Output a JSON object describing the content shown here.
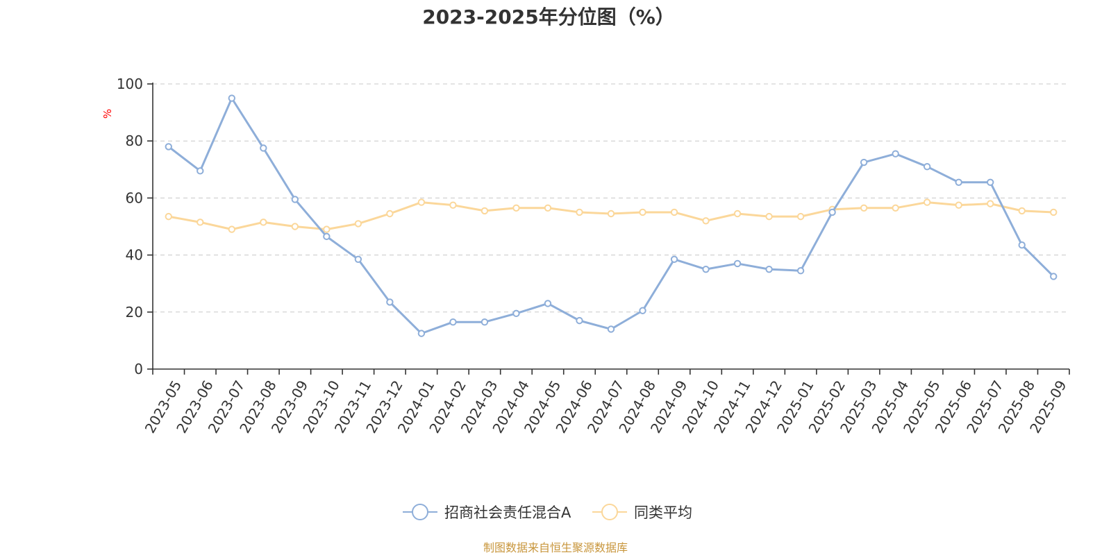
{
  "chart_data": {
    "type": "line",
    "title": "2023-2025年分位图（%）",
    "ylabel": "%",
    "xlabel": "",
    "ylim": [
      0,
      100
    ],
    "yticks": [
      0,
      20,
      40,
      60,
      80,
      100
    ],
    "grid": true,
    "legend_position": "bottom",
    "categories": [
      "2023-05",
      "2023-06",
      "2023-07",
      "2023-08",
      "2023-09",
      "2023-10",
      "2023-11",
      "2023-12",
      "2024-01",
      "2024-02",
      "2024-03",
      "2024-04",
      "2024-05",
      "2024-06",
      "2024-07",
      "2024-08",
      "2024-09",
      "2024-10",
      "2024-11",
      "2024-12",
      "2025-01",
      "2025-02",
      "2025-03",
      "2025-04",
      "2025-05",
      "2025-06",
      "2025-07",
      "2025-08",
      "2025-09"
    ],
    "series": [
      {
        "name": "招商社会责任混合A",
        "color": "#8eaed9",
        "values": [
          78.0,
          69.5,
          95.0,
          77.5,
          59.5,
          46.5,
          38.5,
          23.5,
          12.5,
          16.5,
          16.5,
          19.5,
          23.0,
          17.0,
          14.0,
          20.5,
          38.5,
          35.0,
          37.0,
          35.0,
          34.5,
          55.0,
          72.5,
          75.5,
          71.0,
          65.5,
          65.5,
          43.5,
          32.5
        ]
      },
      {
        "name": "同类平均",
        "color": "#fbd79a",
        "values": [
          53.5,
          51.5,
          49.0,
          51.5,
          50.0,
          49.0,
          51.0,
          54.5,
          58.5,
          57.5,
          55.5,
          56.5,
          56.5,
          55.0,
          54.5,
          55.0,
          55.0,
          52.0,
          54.5,
          53.5,
          53.5,
          56.0,
          56.5,
          56.5,
          58.5,
          57.5,
          58.0,
          55.5,
          55.0
        ]
      }
    ]
  },
  "footer": {
    "source_text": "制图数据来自恒生聚源数据库",
    "source_color": "#c8963c"
  },
  "unit_color": "#ff0000"
}
